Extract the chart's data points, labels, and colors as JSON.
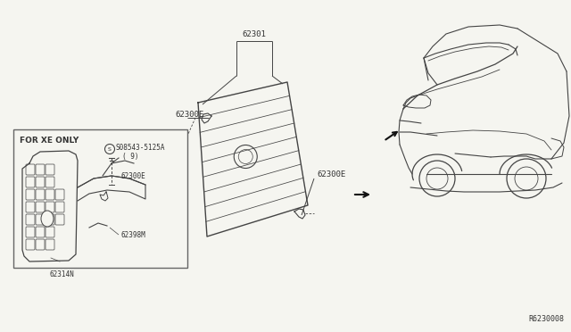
{
  "background_color": "#f5f5f0",
  "diagram_id": "R6230008",
  "colors": {
    "line_color": "#444444",
    "background": "#f5f5f0",
    "box_border": "#555555",
    "text_color": "#333333",
    "arrow_color": "#111111"
  },
  "labels": {
    "part_62301": "62301",
    "part_62300E_left": "62300E",
    "part_62300E_right": "62300E",
    "xe_title": "FOR XE ONLY",
    "xe_screw": "S08543-5125A",
    "xe_screw_qty": "( 9)",
    "xe_clip": "62300E",
    "xe_bracket": "62398M",
    "xe_grille": "62314N",
    "diagram_id": "R6230008"
  }
}
